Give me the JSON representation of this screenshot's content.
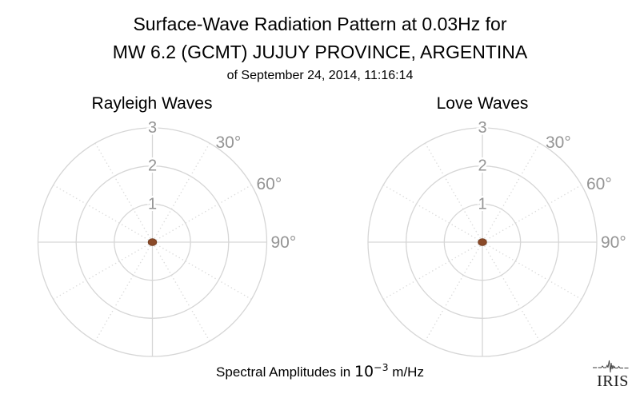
{
  "header": {
    "title_line1": "Surface-Wave Radiation Pattern at 0.03Hz for",
    "title_line2": "MW 6.2 (GCMT) JUJUY PROVINCE, ARGENTINA",
    "subtitle": "of September 24, 2014, 11:16:14"
  },
  "footer": {
    "caption_prefix": "Spectral Amplitudes in ",
    "caption_base": "10",
    "caption_exponent": "−3",
    "caption_suffix": " m/Hz"
  },
  "logo": {
    "text": "IRIS"
  },
  "colors": {
    "grid_line": "#d6d6d6",
    "grid_dot": "#dcdcdc",
    "axis_label": "#949494",
    "title_text": "#000000",
    "marker": "#8a4a28",
    "marker_edge": "#6f3a1c"
  },
  "chart_data": [
    {
      "type": "polar",
      "title": "Rayleigh Waves",
      "radial_ticks": [
        1,
        2,
        3
      ],
      "rmax": 3,
      "spoke_interval_deg": 30,
      "angle_labels": [
        {
          "text": "30°",
          "deg": 30
        },
        {
          "text": "60°",
          "deg": 60
        },
        {
          "text": "90°",
          "deg": 90
        }
      ],
      "series": [
        {
          "name": "rayleigh-radiation-pattern",
          "marker": "dot",
          "color": "#8a4a28",
          "points": [
            {
              "azimuth_deg": "all",
              "amplitude": 0
            }
          ],
          "note": "amplitude ≈ 0 at all azimuths; renders as a single dot at the origin"
        }
      ]
    },
    {
      "type": "polar",
      "title": "Love Waves",
      "radial_ticks": [
        1,
        2,
        3
      ],
      "rmax": 3,
      "spoke_interval_deg": 30,
      "angle_labels": [
        {
          "text": "30°",
          "deg": 30
        },
        {
          "text": "60°",
          "deg": 60
        },
        {
          "text": "90°",
          "deg": 90
        }
      ],
      "series": [
        {
          "name": "love-radiation-pattern",
          "marker": "dot",
          "color": "#8a4a28",
          "points": [
            {
              "azimuth_deg": "all",
              "amplitude": 0
            }
          ],
          "note": "amplitude ≈ 0 at all azimuths; renders as a single dot at the origin"
        }
      ]
    }
  ]
}
